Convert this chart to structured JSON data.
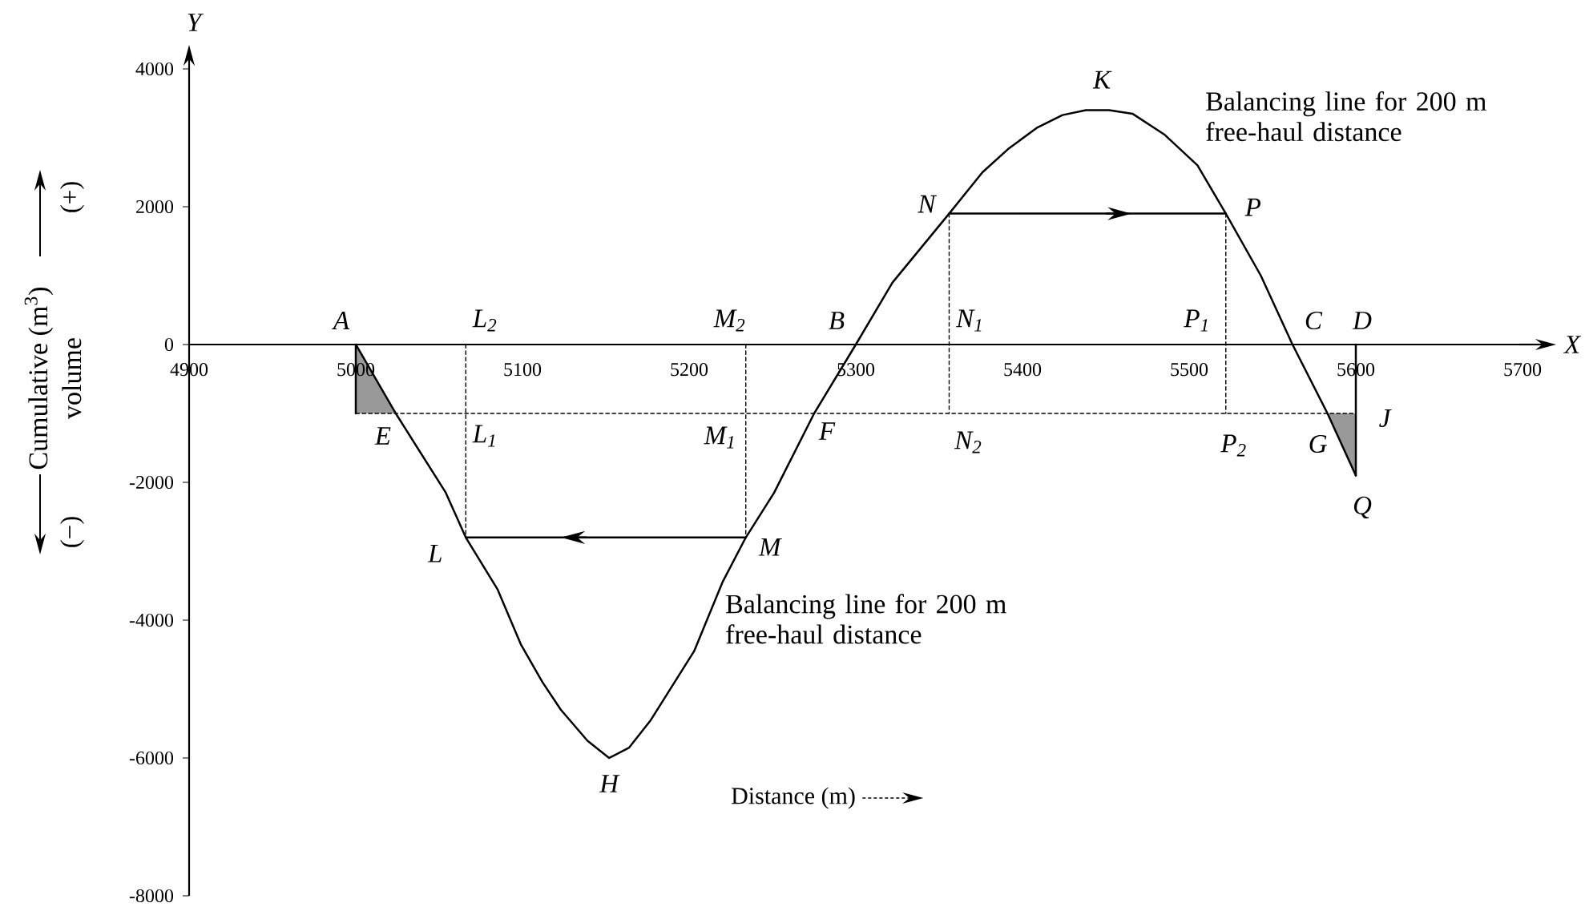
{
  "chart_data": {
    "type": "line",
    "xlabel": "Distance (m)",
    "ylabel": "Cumulative (m$^{3}$) volume",
    "xlim": [
      4900,
      5700
    ],
    "ylim": [
      -8000,
      4000
    ],
    "xticks": [
      4900,
      5000,
      5100,
      5200,
      5300,
      5400,
      5500,
      5600,
      5700
    ],
    "yticks": [
      -8000,
      -6000,
      -4000,
      -2000,
      0,
      2000,
      4000
    ],
    "series": [
      {
        "color": "#000000",
        "x": [
          5000,
          5024,
          5054,
          5066,
          5085,
          5099,
          5112,
          5123,
          5139,
          5152,
          5164,
          5177,
          5190,
          5203,
          5220,
          5234,
          5251,
          5275,
          5300,
          5322,
          5356,
          5376,
          5392,
          5409,
          5424,
          5438,
          5452,
          5466,
          5485,
          5505,
          5522,
          5543,
          5562,
          5583,
          5600
        ],
        "values": [
          0,
          -1000,
          -2150,
          -2800,
          -3550,
          -4350,
          -4900,
          -5300,
          -5750,
          -6000,
          -5850,
          -5450,
          -4950,
          -4450,
          -3450,
          -2800,
          -2150,
          -1000,
          0,
          900,
          1900,
          2500,
          2850,
          3150,
          3330,
          3400,
          3400,
          3350,
          3050,
          2600,
          1900,
          1000,
          0,
          -1000,
          -1900
        ],
        "lower": [
          -1000,
          -1000,
          null,
          null,
          null,
          null,
          null,
          null,
          null,
          null,
          null,
          null,
          null,
          null,
          null,
          null,
          null,
          null,
          null,
          null,
          null,
          null,
          null,
          null,
          null,
          null,
          null,
          null,
          null,
          null,
          null,
          null,
          null,
          -1000,
          -1900
        ],
        "upper": [
          0,
          -1000,
          null,
          null,
          null,
          null,
          null,
          null,
          null,
          null,
          null,
          null,
          null,
          null,
          null,
          null,
          null,
          null,
          null,
          null,
          null,
          null,
          null,
          null,
          null,
          null,
          null,
          null,
          null,
          null,
          null,
          null,
          null,
          -1000,
          -1000
        ]
      },
      {
        "name": "Balancing line for 200 m free-haul distance",
        "color": "#000000",
        "x": [
          5234,
          5066
        ],
        "values": [
          -2800,
          -2800
        ]
      },
      {
        "name": "Balancing line for 200 m free-haul distance",
        "color": "#000000",
        "x": [
          5356,
          5522
        ],
        "values": [
          1900,
          1900
        ]
      },
      {
        "color": "#000000",
        "x": [
          5000,
          5000
        ],
        "values": [
          0,
          -1000
        ]
      },
      {
        "color": "#000000",
        "x": [
          5600,
          5600
        ],
        "values": [
          0,
          -1900
        ]
      },
      {
        "color": "#000000",
        "line_style": "dashed",
        "x": [
          5000,
          5600
        ],
        "values": [
          -1000,
          -1000
        ]
      },
      {
        "color": "#000000",
        "line_style": "dashed",
        "x": [
          5066,
          5066
        ],
        "values": [
          0,
          -2800
        ]
      },
      {
        "color": "#000000",
        "line_style": "dashed",
        "x": [
          5234,
          5234
        ],
        "values": [
          0,
          -2800
        ]
      },
      {
        "color": "#000000",
        "line_style": "dashed",
        "x": [
          5356,
          5356
        ],
        "values": [
          1900,
          -1000
        ]
      },
      {
        "color": "#000000",
        "line_style": "dashed",
        "x": [
          5522,
          5522
        ],
        "values": [
          1900,
          -1000
        ]
      }
    ],
    "annotations": [
      {
        "text": "A",
        "x": 5000,
        "y": 0
      },
      {
        "text": "L$_{2}$",
        "x": 5066,
        "y": 0
      },
      {
        "text": "M$_{2}$",
        "x": 5234,
        "y": 0
      },
      {
        "text": "B",
        "x": 5300,
        "y": 0
      },
      {
        "text": "N$_{1}$",
        "x": 5356,
        "y": 0
      },
      {
        "text": "P$_{1}$",
        "x": 5522,
        "y": 0
      },
      {
        "text": "C",
        "x": 5562,
        "y": 0
      },
      {
        "text": "D",
        "x": 5600,
        "y": 0
      },
      {
        "text": "E",
        "x": 5024,
        "y": -1000
      },
      {
        "text": "L$_{1}$",
        "x": 5066,
        "y": -1000
      },
      {
        "text": "M$_{1}$",
        "x": 5234,
        "y": -1000
      },
      {
        "text": "F",
        "x": 5275,
        "y": -1000
      },
      {
        "text": "N$_{2}$",
        "x": 5356,
        "y": -1000
      },
      {
        "text": "P$_{2}$",
        "x": 5522,
        "y": -1000
      },
      {
        "text": "G",
        "x": 5583,
        "y": -1000
      },
      {
        "text": "J",
        "x": 5600,
        "y": -1000
      },
      {
        "text": "Q",
        "x": 5600,
        "y": -1900
      },
      {
        "text": "L",
        "x": 5066,
        "y": -2800
      },
      {
        "text": "M",
        "x": 5234,
        "y": -2800
      },
      {
        "text": "H",
        "x": 5152,
        "y": -6000
      },
      {
        "text": "N",
        "x": 5356,
        "y": 1900
      },
      {
        "text": "P",
        "x": 5522,
        "y": 1900
      },
      {
        "text": "K",
        "x": 5438,
        "y": 3400
      },
      "X",
      "Y",
      "(+)",
      "(−)"
    ]
  }
}
